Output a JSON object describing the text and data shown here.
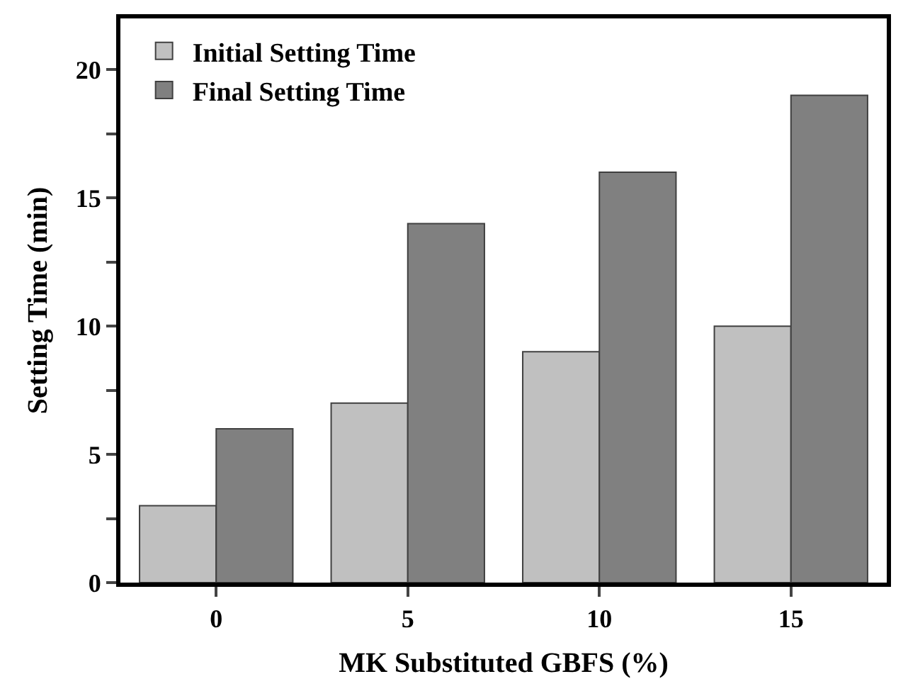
{
  "chart_data": {
    "type": "bar",
    "xlabel": "MK Substituted GBFS (%)",
    "ylabel": "Setting Time (min)",
    "categories": [
      "0",
      "5",
      "10",
      "15"
    ],
    "series": [
      {
        "name": "Initial Setting Time",
        "color": "#c0c0c0",
        "values": [
          3,
          7,
          9,
          10
        ]
      },
      {
        "name": "Final Setting Time",
        "color": "#808080",
        "values": [
          6,
          14,
          16,
          19
        ]
      }
    ],
    "ylim": [
      0,
      22
    ],
    "yticks": [
      0,
      {
        "value": 2.5,
        "label": null
      },
      5,
      {
        "value": 7.5,
        "label": null
      },
      10,
      {
        "value": 12.5,
        "label": null
      },
      15,
      {
        "value": 17.5,
        "label": null
      },
      20
    ],
    "legend": "top left"
  }
}
